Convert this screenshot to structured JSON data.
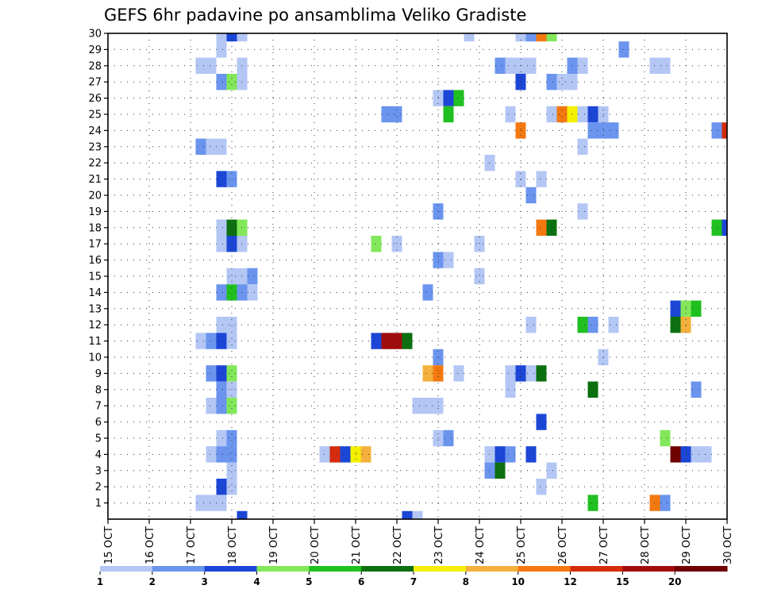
{
  "chart_data": {
    "type": "heatmap",
    "title": "GEFS 6hr padavine po ansamblima Veliko Gradiste",
    "xlabel": "",
    "ylabel": "",
    "x_ticks": [
      "15 OCT",
      "16 OCT",
      "17 OCT",
      "18 OCT",
      "19 OCT",
      "20 OCT",
      "21 OCT",
      "22 OCT",
      "23 OCT",
      "24 OCT",
      "25 OCT",
      "26 OCT",
      "27 OCT",
      "28 OCT",
      "29 OCT",
      "30 OCT"
    ],
    "y_ticks": [
      "1",
      "2",
      "3",
      "4",
      "5",
      "6",
      "7",
      "8",
      "9",
      "10",
      "11",
      "12",
      "13",
      "14",
      "15",
      "16",
      "17",
      "18",
      "19",
      "20",
      "21",
      "22",
      "23",
      "24",
      "25",
      "26",
      "27",
      "28",
      "29",
      "30"
    ],
    "x_range_days": [
      0,
      15
    ],
    "step_days": 0.25,
    "y_range_members": [
      0,
      30
    ],
    "grid": "dotted",
    "legend_placement": "bottom",
    "colorbar": {
      "labels": [
        "1",
        "2",
        "3",
        "4",
        "5",
        "6",
        "7",
        "8",
        "10",
        "12",
        "15",
        "20"
      ],
      "colors": [
        "#b3c6f4",
        "#6a94ee",
        "#1c46d6",
        "#82e85a",
        "#20c020",
        "#0c7010",
        "#f4f000",
        "#f4b03c",
        "#f47810",
        "#d42c0c",
        "#a00c0c",
        "#700000"
      ]
    },
    "cells": [
      {
        "m": 30,
        "x": [
          2.75,
          3
        ],
        "c": 0
      },
      {
        "m": 30,
        "x": [
          3
        ],
        "c": 2
      },
      {
        "m": 30,
        "x": [
          3.25
        ],
        "c": 0
      },
      {
        "m": 30,
        "x": [
          8.75
        ],
        "c": 0
      },
      {
        "m": 30,
        "x": [
          10
        ],
        "c": 0
      },
      {
        "m": 30,
        "x": [
          10.25
        ],
        "c": 1
      },
      {
        "m": 30,
        "x": [
          10.5
        ],
        "c": 8
      },
      {
        "m": 30,
        "x": [
          10.75
        ],
        "c": 3
      },
      {
        "m": 29,
        "x": [
          2.75
        ],
        "c": 0
      },
      {
        "m": 29,
        "x": [
          12.5
        ],
        "c": 1
      },
      {
        "m": 28,
        "x": [
          2.25,
          2.5
        ],
        "c": 0
      },
      {
        "m": 28,
        "x": [
          3.25
        ],
        "c": 0
      },
      {
        "m": 28,
        "x": [
          9.5
        ],
        "c": 1
      },
      {
        "m": 28,
        "x": [
          9.75,
          10,
          10.25
        ],
        "c": 0
      },
      {
        "m": 28,
        "x": [
          11.25
        ],
        "c": 1
      },
      {
        "m": 28,
        "x": [
          11.5
        ],
        "c": 0
      },
      {
        "m": 28,
        "x": [
          13.25,
          13.5
        ],
        "c": 0
      },
      {
        "m": 27,
        "x": [
          2.75
        ],
        "c": 1
      },
      {
        "m": 27,
        "x": [
          3
        ],
        "c": 3
      },
      {
        "m": 27,
        "x": [
          3.25
        ],
        "c": 0
      },
      {
        "m": 27,
        "x": [
          10
        ],
        "c": 2
      },
      {
        "m": 27,
        "x": [
          10.75
        ],
        "c": 1
      },
      {
        "m": 27,
        "x": [
          11,
          11.25
        ],
        "c": 0
      },
      {
        "m": 26,
        "x": [
          8
        ],
        "c": 0
      },
      {
        "m": 26,
        "x": [
          8.25
        ],
        "c": 2
      },
      {
        "m": 26,
        "x": [
          8.5
        ],
        "c": 4
      },
      {
        "m": 25,
        "x": [
          6.75,
          7
        ],
        "c": 1
      },
      {
        "m": 25,
        "x": [
          8.25
        ],
        "c": 4
      },
      {
        "m": 25,
        "x": [
          9.75
        ],
        "c": 0
      },
      {
        "m": 25,
        "x": [
          10.75
        ],
        "c": 0
      },
      {
        "m": 25,
        "x": [
          11
        ],
        "c": 8
      },
      {
        "m": 25,
        "x": [
          11.25
        ],
        "c": 6
      },
      {
        "m": 25,
        "x": [
          11.5
        ],
        "c": 0
      },
      {
        "m": 25,
        "x": [
          11.75
        ],
        "c": 2
      },
      {
        "m": 25,
        "x": [
          12
        ],
        "c": 0
      },
      {
        "m": 24,
        "x": [
          10
        ],
        "c": 8
      },
      {
        "m": 24,
        "x": [
          11.75,
          12,
          12.25
        ],
        "c": 1
      },
      {
        "m": 24,
        "x": [
          14.75
        ],
        "c": 1
      },
      {
        "m": 24,
        "x": [
          15
        ],
        "c": 9
      },
      {
        "m": 23,
        "x": [
          2.25
        ],
        "c": 1
      },
      {
        "m": 23,
        "x": [
          2.5,
          2.75
        ],
        "c": 0
      },
      {
        "m": 23,
        "x": [
          11.5
        ],
        "c": 0
      },
      {
        "m": 22,
        "x": [
          9.25
        ],
        "c": 0
      },
      {
        "m": 21,
        "x": [
          2.75
        ],
        "c": 2
      },
      {
        "m": 21,
        "x": [
          3
        ],
        "c": 1
      },
      {
        "m": 21,
        "x": [
          10
        ],
        "c": 0
      },
      {
        "m": 21,
        "x": [
          10.5
        ],
        "c": 0
      },
      {
        "m": 20,
        "x": [
          10.25
        ],
        "c": 1
      },
      {
        "m": 19,
        "x": [
          8
        ],
        "c": 1
      },
      {
        "m": 19,
        "x": [
          11.5
        ],
        "c": 0
      },
      {
        "m": 18,
        "x": [
          2.75
        ],
        "c": 0
      },
      {
        "m": 18,
        "x": [
          3
        ],
        "c": 5
      },
      {
        "m": 18,
        "x": [
          3.25
        ],
        "c": 3
      },
      {
        "m": 18,
        "x": [
          10.5
        ],
        "c": 8
      },
      {
        "m": 18,
        "x": [
          10.75
        ],
        "c": 5
      },
      {
        "m": 18,
        "x": [
          14.75
        ],
        "c": 4
      },
      {
        "m": 18,
        "x": [
          15
        ],
        "c": 2
      },
      {
        "m": 17,
        "x": [
          2.75
        ],
        "c": 0
      },
      {
        "m": 17,
        "x": [
          3
        ],
        "c": 2
      },
      {
        "m": 17,
        "x": [
          3.25
        ],
        "c": 0
      },
      {
        "m": 17,
        "x": [
          6.5
        ],
        "c": 3
      },
      {
        "m": 17,
        "x": [
          7
        ],
        "c": 0
      },
      {
        "m": 17,
        "x": [
          9
        ],
        "c": 0
      },
      {
        "m": 16,
        "x": [
          8
        ],
        "c": 1
      },
      {
        "m": 16,
        "x": [
          8.25
        ],
        "c": 0
      },
      {
        "m": 15,
        "x": [
          3,
          3.25
        ],
        "c": 0
      },
      {
        "m": 15,
        "x": [
          3.5
        ],
        "c": 1
      },
      {
        "m": 15,
        "x": [
          9
        ],
        "c": 0
      },
      {
        "m": 14,
        "x": [
          2.75
        ],
        "c": 1
      },
      {
        "m": 14,
        "x": [
          3
        ],
        "c": 4
      },
      {
        "m": 14,
        "x": [
          3.25
        ],
        "c": 1
      },
      {
        "m": 14,
        "x": [
          3.5
        ],
        "c": 0
      },
      {
        "m": 14,
        "x": [
          7.75
        ],
        "c": 1
      },
      {
        "m": 13,
        "x": [
          13.75
        ],
        "c": 2
      },
      {
        "m": 13,
        "x": [
          14
        ],
        "c": 3
      },
      {
        "m": 13,
        "x": [
          14.25
        ],
        "c": 4
      },
      {
        "m": 12,
        "x": [
          2.75,
          3
        ],
        "c": 0
      },
      {
        "m": 12,
        "x": [
          10.25
        ],
        "c": 0
      },
      {
        "m": 12,
        "x": [
          11.5
        ],
        "c": 4
      },
      {
        "m": 12,
        "x": [
          11.75
        ],
        "c": 1
      },
      {
        "m": 12,
        "x": [
          12.25
        ],
        "c": 0
      },
      {
        "m": 12,
        "x": [
          13.75
        ],
        "c": 5
      },
      {
        "m": 12,
        "x": [
          14
        ],
        "c": 7
      },
      {
        "m": 11,
        "x": [
          2.25
        ],
        "c": 0
      },
      {
        "m": 11,
        "x": [
          2.5
        ],
        "c": 1
      },
      {
        "m": 11,
        "x": [
          2.75
        ],
        "c": 2
      },
      {
        "m": 11,
        "x": [
          3
        ],
        "c": 0
      },
      {
        "m": 11,
        "x": [
          6.5
        ],
        "c": 2
      },
      {
        "m": 11,
        "x": [
          6.75,
          7
        ],
        "c": 10
      },
      {
        "m": 11,
        "x": [
          7.25
        ],
        "c": 5
      },
      {
        "m": 10,
        "x": [
          8
        ],
        "c": 1
      },
      {
        "m": 10,
        "x": [
          12
        ],
        "c": 0
      },
      {
        "m": 9,
        "x": [
          2.5
        ],
        "c": 1
      },
      {
        "m": 9,
        "x": [
          2.75
        ],
        "c": 2
      },
      {
        "m": 9,
        "x": [
          3
        ],
        "c": 3
      },
      {
        "m": 9,
        "x": [
          7.75
        ],
        "c": 7
      },
      {
        "m": 9,
        "x": [
          8
        ],
        "c": 8
      },
      {
        "m": 9,
        "x": [
          8.5
        ],
        "c": 0
      },
      {
        "m": 9,
        "x": [
          9.75
        ],
        "c": 0
      },
      {
        "m": 9,
        "x": [
          10
        ],
        "c": 2
      },
      {
        "m": 9,
        "x": [
          10.25
        ],
        "c": 0
      },
      {
        "m": 9,
        "x": [
          10.5
        ],
        "c": 5
      },
      {
        "m": 8,
        "x": [
          2.75
        ],
        "c": 1
      },
      {
        "m": 8,
        "x": [
          3
        ],
        "c": 0
      },
      {
        "m": 8,
        "x": [
          9.75
        ],
        "c": 0
      },
      {
        "m": 8,
        "x": [
          11.75
        ],
        "c": 5
      },
      {
        "m": 8,
        "x": [
          14.25
        ],
        "c": 1
      },
      {
        "m": 7,
        "x": [
          2.5
        ],
        "c": 0
      },
      {
        "m": 7,
        "x": [
          2.75
        ],
        "c": 1
      },
      {
        "m": 7,
        "x": [
          3
        ],
        "c": 3
      },
      {
        "m": 7,
        "x": [
          7.5,
          7.75,
          8
        ],
        "c": 0
      },
      {
        "m": 6,
        "x": [
          10.5
        ],
        "c": 2
      },
      {
        "m": 5,
        "x": [
          2.75
        ],
        "c": 0
      },
      {
        "m": 5,
        "x": [
          3
        ],
        "c": 1
      },
      {
        "m": 5,
        "x": [
          8
        ],
        "c": 0
      },
      {
        "m": 5,
        "x": [
          8.25
        ],
        "c": 1
      },
      {
        "m": 5,
        "x": [
          13.5
        ],
        "c": 3
      },
      {
        "m": 4,
        "x": [
          2.5
        ],
        "c": 0
      },
      {
        "m": 4,
        "x": [
          2.75,
          3
        ],
        "c": 1
      },
      {
        "m": 4,
        "x": [
          5.25
        ],
        "c": 0
      },
      {
        "m": 4,
        "x": [
          5.5
        ],
        "c": 9
      },
      {
        "m": 4,
        "x": [
          5.75
        ],
        "c": 2
      },
      {
        "m": 4,
        "x": [
          6
        ],
        "c": 6
      },
      {
        "m": 4,
        "x": [
          6.25
        ],
        "c": 7
      },
      {
        "m": 4,
        "x": [
          9.25
        ],
        "c": 0
      },
      {
        "m": 4,
        "x": [
          9.5
        ],
        "c": 2
      },
      {
        "m": 4,
        "x": [
          9.75
        ],
        "c": 1
      },
      {
        "m": 4,
        "x": [
          10.25
        ],
        "c": 2
      },
      {
        "m": 4,
        "x": [
          13.75
        ],
        "c": 11
      },
      {
        "m": 4,
        "x": [
          14
        ],
        "c": 2
      },
      {
        "m": 4,
        "x": [
          14.25,
          14.5
        ],
        "c": 0
      },
      {
        "m": 3,
        "x": [
          3
        ],
        "c": 0
      },
      {
        "m": 3,
        "x": [
          9.25
        ],
        "c": 1
      },
      {
        "m": 3,
        "x": [
          9.5
        ],
        "c": 5
      },
      {
        "m": 3,
        "x": [
          10.75
        ],
        "c": 0
      },
      {
        "m": 2,
        "x": [
          2.75
        ],
        "c": 2
      },
      {
        "m": 2,
        "x": [
          3
        ],
        "c": 0
      },
      {
        "m": 2,
        "x": [
          10.5
        ],
        "c": 0
      },
      {
        "m": 1,
        "x": [
          2.25,
          2.5,
          2.75
        ],
        "c": 0
      },
      {
        "m": 1,
        "x": [
          11.75
        ],
        "c": 4
      },
      {
        "m": 1,
        "x": [
          13.25
        ],
        "c": 8
      },
      {
        "m": 1,
        "x": [
          13.5
        ],
        "c": 1
      },
      {
        "m": 0,
        "x": [
          3.25
        ],
        "c": 2
      },
      {
        "m": 0,
        "x": [
          7.25
        ],
        "c": 2
      },
      {
        "m": 0,
        "x": [
          7.5
        ],
        "c": 0
      }
    ]
  }
}
